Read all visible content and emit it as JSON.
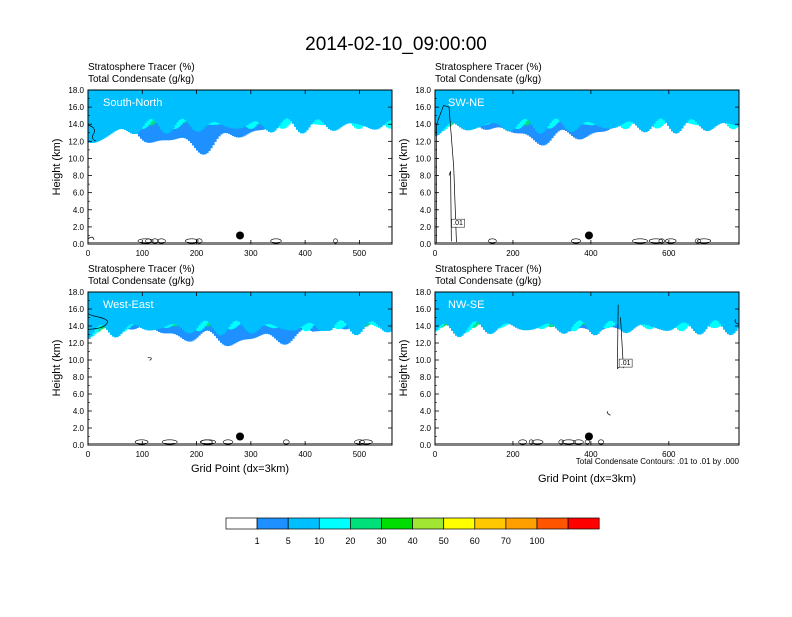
{
  "title": "2014-02-10_09:00:00",
  "footnote": "Total Condensate Contours: .01 to .01 by .000",
  "colors": [
    "#ffffff",
    "#1e90ff",
    "#00bfff",
    "#00ffff",
    "#00e07a",
    "#00dd00",
    "#a0e632",
    "#ffff00",
    "#ffc800",
    "#ffa000",
    "#ff5500",
    "#ff0000"
  ],
  "colorbar": {
    "labels": [
      "1",
      "5",
      "10",
      "20",
      "30",
      "40",
      "50",
      "60",
      "70",
      "100"
    ]
  },
  "chart_data": [
    {
      "type": "heatmap",
      "subtitle_line1": "Stratosphere Tracer   (%)",
      "subtitle_line2": "Total Condensate   (g/kg)",
      "panel_label": "South-North",
      "ylabel": "Height (km)",
      "xlabel": "",
      "xlim": [
        0,
        560
      ],
      "ylim": [
        0,
        18
      ],
      "xticks": [
        "0",
        "100",
        "200",
        "300",
        "400",
        "500"
      ],
      "yticks": [
        "0.0",
        "2.0",
        "4.0",
        "6.0",
        "8.0",
        "10.0",
        "12.0",
        "14.0",
        "16.0",
        "18.0"
      ],
      "marker_x": 280,
      "contour_label": ""
    },
    {
      "type": "heatmap",
      "subtitle_line1": "Stratosphere Tracer   (%)",
      "subtitle_line2": "Total Condensate   (g/kg)",
      "panel_label": "SW-NE",
      "ylabel": "Height (km)",
      "xlabel": "",
      "xlim": [
        0,
        780
      ],
      "ylim": [
        0,
        18
      ],
      "xticks": [
        "0",
        "200",
        "400",
        "600"
      ],
      "yticks": [
        "0.0",
        "2.0",
        "4.0",
        "6.0",
        "8.0",
        "10.0",
        "12.0",
        "14.0",
        "16.0",
        "18.0"
      ],
      "marker_x": 395,
      "contour_label": ".01"
    },
    {
      "type": "heatmap",
      "subtitle_line1": "Stratosphere Tracer   (%)",
      "subtitle_line2": "Total Condensate   (g/kg)",
      "panel_label": "West-East",
      "ylabel": "Height (km)",
      "xlabel": "Grid Point (dx=3km)",
      "xlim": [
        0,
        560
      ],
      "ylim": [
        0,
        18
      ],
      "xticks": [
        "0",
        "100",
        "200",
        "300",
        "400",
        "500"
      ],
      "yticks": [
        "0.0",
        "2.0",
        "4.0",
        "6.0",
        "8.0",
        "10.0",
        "12.0",
        "14.0",
        "16.0",
        "18.0"
      ],
      "marker_x": 280,
      "contour_label": ""
    },
    {
      "type": "heatmap",
      "subtitle_line1": "Stratosphere Tracer   (%)",
      "subtitle_line2": "Total Condensate   (g/kg)",
      "panel_label": "NW-SE",
      "ylabel": "Height (km)",
      "xlabel": "Grid Point (dx=3km)",
      "xlim": [
        0,
        780
      ],
      "ylim": [
        0,
        18
      ],
      "xticks": [
        "0",
        "200",
        "400",
        "600"
      ],
      "yticks": [
        "0.0",
        "2.0",
        "4.0",
        "6.0",
        "8.0",
        "10.0",
        "12.0",
        "14.0",
        "16.0",
        "18.0"
      ],
      "marker_x": 395,
      "contour_label": ".01"
    }
  ]
}
